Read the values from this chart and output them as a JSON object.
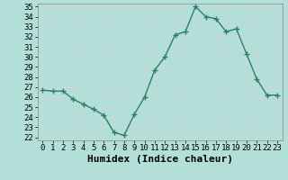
{
  "x": [
    0,
    1,
    2,
    3,
    4,
    5,
    6,
    7,
    8,
    9,
    10,
    11,
    12,
    13,
    14,
    15,
    16,
    17,
    18,
    19,
    20,
    21,
    22,
    23
  ],
  "y": [
    26.7,
    26.6,
    26.6,
    25.8,
    25.3,
    24.8,
    24.2,
    22.5,
    22.2,
    24.3,
    26.0,
    28.7,
    30.0,
    32.2,
    32.5,
    35.0,
    34.0,
    33.8,
    32.5,
    32.8,
    30.3,
    27.8,
    26.2,
    26.2
  ],
  "xlabel": "Humidex (Indice chaleur)",
  "line_color": "#2e7d6e",
  "bg_color": "#b2e0d8",
  "grid_color": "#c8d8d5",
  "ylim_min": 22,
  "ylim_max": 35,
  "yticks": [
    22,
    23,
    24,
    25,
    26,
    27,
    28,
    29,
    30,
    31,
    32,
    33,
    34,
    35
  ],
  "xticks": [
    0,
    1,
    2,
    3,
    4,
    5,
    6,
    7,
    8,
    9,
    10,
    11,
    12,
    13,
    14,
    15,
    16,
    17,
    18,
    19,
    20,
    21,
    22,
    23
  ],
  "xtick_labels": [
    "0",
    "1",
    "2",
    "3",
    "4",
    "5",
    "6",
    "7",
    "8",
    "9",
    "10",
    "11",
    "12",
    "13",
    "14",
    "15",
    "16",
    "17",
    "18",
    "19",
    "20",
    "21",
    "22",
    "23"
  ],
  "marker": "+",
  "linewidth": 1.0,
  "markersize": 4,
  "tick_fontsize": 6.5,
  "xlabel_fontsize": 8
}
